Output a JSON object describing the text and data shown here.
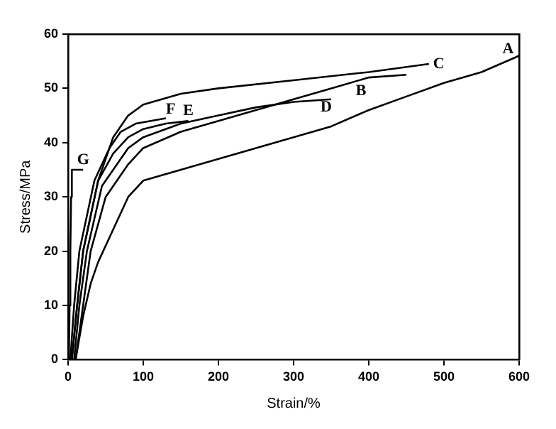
{
  "chart_data": {
    "type": "line",
    "xlabel": "Strain/%",
    "ylabel": "Stress/MPa",
    "xlim": [
      0,
      600
    ],
    "ylim": [
      0,
      60
    ],
    "xticks": [
      0,
      100,
      200,
      300,
      400,
      500,
      600
    ],
    "yticks": [
      0,
      10,
      20,
      30,
      40,
      50,
      60
    ],
    "grid": false,
    "legend": false,
    "marker": "none",
    "line_style": "solid",
    "series": [
      {
        "name": "A",
        "color": "#000000",
        "x": [
          10,
          20,
          30,
          40,
          60,
          80,
          100,
          150,
          200,
          250,
          300,
          350,
          400,
          450,
          500,
          550,
          600
        ],
        "values": [
          0,
          8,
          14,
          18,
          24,
          30,
          33,
          35,
          37,
          39,
          41,
          43,
          46,
          48.5,
          51,
          53,
          56
        ]
      },
      {
        "name": "B",
        "color": "#000000",
        "x": [
          10,
          20,
          30,
          50,
          80,
          100,
          150,
          200,
          250,
          300,
          350,
          400,
          450
        ],
        "values": [
          0,
          10,
          20,
          30,
          36,
          39,
          42,
          44,
          46,
          48,
          50,
          52,
          52.5
        ]
      },
      {
        "name": "C",
        "color": "#000000",
        "x": [
          5,
          12,
          20,
          40,
          60,
          80,
          100,
          150,
          200,
          300,
          400,
          480
        ],
        "values": [
          0,
          10,
          20,
          33,
          41,
          45,
          47,
          49,
          50,
          51.5,
          53,
          54.5
        ]
      },
      {
        "name": "D",
        "color": "#000000",
        "x": [
          8,
          15,
          25,
          45,
          80,
          100,
          150,
          200,
          250,
          300,
          350
        ],
        "values": [
          0,
          10,
          20,
          32,
          39,
          41,
          43.5,
          45,
          46.5,
          47.5,
          48
        ]
      },
      {
        "name": "E",
        "color": "#000000",
        "x": [
          5,
          12,
          20,
          40,
          60,
          80,
          100,
          130,
          160
        ],
        "values": [
          0,
          10,
          20,
          33,
          38,
          41,
          42.5,
          43.5,
          44
        ]
      },
      {
        "name": "F",
        "color": "#000000",
        "x": [
          3,
          8,
          15,
          35,
          55,
          70,
          90,
          110,
          130
        ],
        "values": [
          0,
          10,
          20,
          33,
          39,
          42,
          43.5,
          44,
          44.5
        ]
      },
      {
        "name": "G",
        "color": "#000000",
        "x": [
          1,
          2,
          3,
          4,
          5,
          20
        ],
        "values": [
          0,
          10,
          20,
          30,
          35,
          35
        ]
      }
    ]
  }
}
